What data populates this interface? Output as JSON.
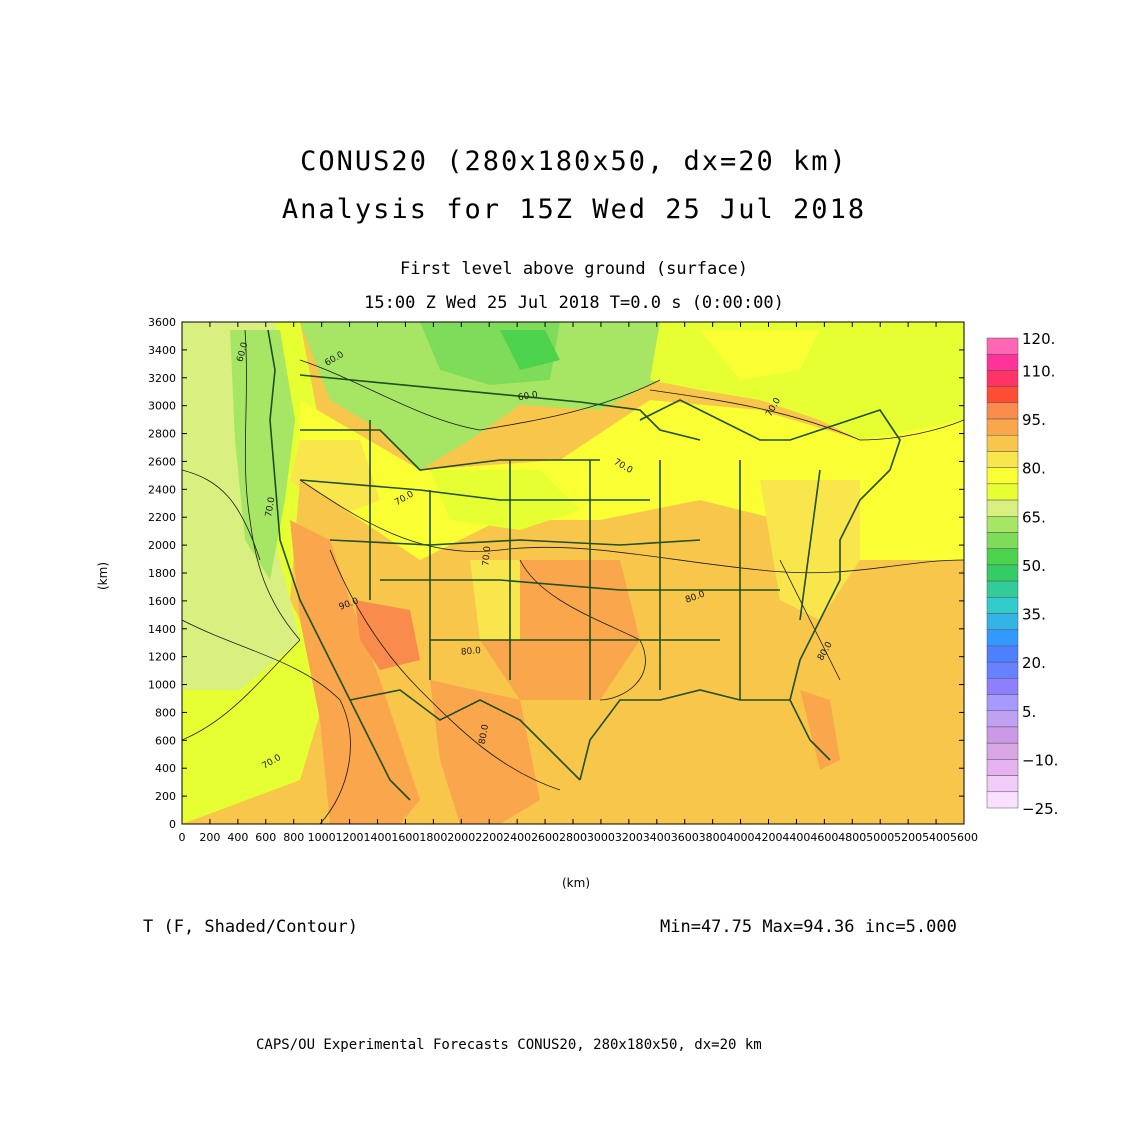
{
  "header": {
    "title_line1": "CONUS20 (280x180x50, dx=20 km)",
    "title_line2": "Analysis for 15Z Wed 25 Jul 2018",
    "subtitle": "First level above ground (surface)",
    "time_line": "15:00 Z Wed 25 Jul 2018    T=0.0 s (0:00:00)"
  },
  "axes": {
    "x_unit": "(km)",
    "y_unit": "(km)",
    "x_ticks": [
      0,
      200,
      400,
      600,
      800,
      1000,
      1200,
      1400,
      1600,
      1800,
      2000,
      2200,
      2400,
      2600,
      2800,
      3000,
      3200,
      3400,
      3600,
      3800,
      4000,
      4200,
      4400,
      4600,
      4800,
      5000,
      5200,
      5400,
      5600
    ],
    "y_ticks": [
      0,
      200,
      400,
      600,
      800,
      1000,
      1200,
      1400,
      1600,
      1800,
      2000,
      2200,
      2400,
      2600,
      2800,
      3000,
      3200,
      3400,
      3600
    ],
    "xlim": [
      0,
      5600
    ],
    "ylim": [
      0,
      3600
    ]
  },
  "contour_labels": [
    {
      "text": "60.0",
      "x": 450,
      "y": 3380,
      "rot": -75
    },
    {
      "text": "60.0",
      "x": 1100,
      "y": 3320,
      "rot": -30
    },
    {
      "text": "60.0",
      "x": 2480,
      "y": 3050,
      "rot": -10
    },
    {
      "text": "70.0",
      "x": 4250,
      "y": 2980,
      "rot": -60
    },
    {
      "text": "70.0",
      "x": 3150,
      "y": 2550,
      "rot": 30
    },
    {
      "text": "70.0",
      "x": 1600,
      "y": 2320,
      "rot": -30
    },
    {
      "text": "70.0",
      "x": 650,
      "y": 2270,
      "rot": -80
    },
    {
      "text": "70.0",
      "x": 2200,
      "y": 1920,
      "rot": -85
    },
    {
      "text": "90.0",
      "x": 1200,
      "y": 1560,
      "rot": -20
    },
    {
      "text": "80.0",
      "x": 2070,
      "y": 1220,
      "rot": -5
    },
    {
      "text": "80.0",
      "x": 3680,
      "y": 1610,
      "rot": -20
    },
    {
      "text": "80.0",
      "x": 4620,
      "y": 1230,
      "rot": -60
    },
    {
      "text": "80.0",
      "x": 2180,
      "y": 640,
      "rot": -80
    },
    {
      "text": "70.0",
      "x": 650,
      "y": 430,
      "rot": -30
    }
  ],
  "colorbar": {
    "colors": [
      "#ff66b3",
      "#ff3399",
      "#ff3366",
      "#ff4d33",
      "#f98c4c",
      "#f9a64c",
      "#f9c64c",
      "#f9e64c",
      "#f9ff33",
      "#e6ff33",
      "#d9f080",
      "#a6e664",
      "#7fdc5a",
      "#4dd24d",
      "#33cc66",
      "#33cc99",
      "#33cccc",
      "#33b3e6",
      "#3399ff",
      "#4d80ff",
      "#6680ff",
      "#8c80ff",
      "#a699ff",
      "#c0a0f0",
      "#cc99e6",
      "#d9a6e6",
      "#e6b3f0",
      "#f2ccf9",
      "#f9e0ff"
    ],
    "labels": [
      {
        "text": "120.",
        "index": 0
      },
      {
        "text": "110.",
        "index": 2
      },
      {
        "text": "95.",
        "index": 5
      },
      {
        "text": "80.",
        "index": 8
      },
      {
        "text": "65.",
        "index": 11
      },
      {
        "text": "50.",
        "index": 14
      },
      {
        "text": "35.",
        "index": 17
      },
      {
        "text": "20.",
        "index": 20
      },
      {
        "text": "5.",
        "index": 23
      },
      {
        "text": "−10.",
        "index": 26
      },
      {
        "text": "−25.",
        "index": 29
      }
    ]
  },
  "footer": {
    "field_label": "T (F, Shaded/Contour)",
    "stats": "Min=47.75 Max=94.36 inc=5.000",
    "credit": "CAPS/OU Experimental Forecasts  CONUS20, 280x180x50, dx=20 km"
  },
  "colors": {
    "boundary": "#1f4f1f",
    "contour": "#1a1a1a"
  }
}
